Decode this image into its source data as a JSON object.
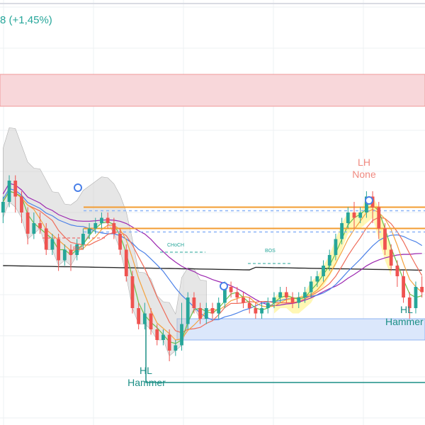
{
  "header": {
    "change_text": "8 (+1,45%)"
  },
  "annotations": {
    "lh_label": "LH",
    "none_label": "None",
    "hl_left_label": "HL",
    "hammer_left_label": "Hammer",
    "hl_right_label": "HL",
    "hammer_right_label": "Hammer",
    "bos_left": "BOS",
    "bos_mid": "BOS",
    "choch_label": "CHoCH"
  },
  "colors": {
    "up": "#26a69a",
    "down": "#ef5350",
    "resistance_zone": "#f8d7da",
    "support_zone": "#dbe7fb",
    "orange_line": "#f39c32",
    "black_ma": "#2b2b2b",
    "purple_ma": "#9c27b0",
    "blue_ma": "#4a80e8",
    "red_ma": "#ef6c5a",
    "orange_ma": "#f4a340",
    "green_ma": "#6cc24a",
    "gray_cloud": "#c8c8c8",
    "yellow_cloud": "#fff176",
    "grid": "#eef0f3"
  },
  "chart_data": {
    "type": "candlestick",
    "candles": [
      {
        "o": 60,
        "c": 62,
        "h": 63,
        "l": 58
      },
      {
        "o": 62,
        "c": 66,
        "h": 67,
        "l": 61
      },
      {
        "o": 66,
        "c": 63,
        "h": 67,
        "l": 60
      },
      {
        "o": 63,
        "c": 60,
        "h": 64,
        "l": 58
      },
      {
        "o": 60,
        "c": 56,
        "h": 61,
        "l": 54
      },
      {
        "o": 56,
        "c": 58,
        "h": 60,
        "l": 55
      },
      {
        "o": 58,
        "c": 57,
        "h": 60,
        "l": 56
      },
      {
        "o": 57,
        "c": 53,
        "h": 58,
        "l": 52
      },
      {
        "o": 53,
        "c": 55,
        "h": 56,
        "l": 52
      },
      {
        "o": 55,
        "c": 51,
        "h": 56,
        "l": 49
      },
      {
        "o": 51,
        "c": 53,
        "h": 54,
        "l": 50
      },
      {
        "o": 53,
        "c": 52,
        "h": 54,
        "l": 49
      },
      {
        "o": 52,
        "c": 54,
        "h": 55,
        "l": 51
      },
      {
        "o": 54,
        "c": 56,
        "h": 57,
        "l": 53
      },
      {
        "o": 56,
        "c": 57,
        "h": 58,
        "l": 55
      },
      {
        "o": 57,
        "c": 58,
        "h": 59,
        "l": 56
      },
      {
        "o": 58,
        "c": 59,
        "h": 60,
        "l": 57
      },
      {
        "o": 59,
        "c": 58,
        "h": 60,
        "l": 57
      },
      {
        "o": 58,
        "c": 56,
        "h": 59,
        "l": 55
      },
      {
        "o": 56,
        "c": 53,
        "h": 57,
        "l": 52
      },
      {
        "o": 53,
        "c": 48,
        "h": 54,
        "l": 47
      },
      {
        "o": 48,
        "c": 42,
        "h": 49,
        "l": 41
      },
      {
        "o": 42,
        "c": 39,
        "h": 43,
        "l": 38
      },
      {
        "o": 39,
        "c": 41,
        "h": 43,
        "l": 38
      },
      {
        "o": 41,
        "c": 38,
        "h": 42,
        "l": 37
      },
      {
        "o": 38,
        "c": 36,
        "h": 39,
        "l": 35
      },
      {
        "o": 36,
        "c": 37,
        "h": 38,
        "l": 35
      },
      {
        "o": 37,
        "c": 34,
        "h": 38,
        "l": 32
      },
      {
        "o": 34,
        "c": 35,
        "h": 36,
        "l": 33
      },
      {
        "o": 35,
        "c": 39,
        "h": 43,
        "l": 34
      },
      {
        "o": 39,
        "c": 44,
        "h": 45,
        "l": 38
      },
      {
        "o": 44,
        "c": 42,
        "h": 45,
        "l": 41
      },
      {
        "o": 42,
        "c": 40,
        "h": 43,
        "l": 39
      },
      {
        "o": 40,
        "c": 42,
        "h": 43,
        "l": 39
      },
      {
        "o": 42,
        "c": 41,
        "h": 43,
        "l": 40
      },
      {
        "o": 41,
        "c": 43,
        "h": 44,
        "l": 40
      },
      {
        "o": 43,
        "c": 46,
        "h": 47,
        "l": 42
      },
      {
        "o": 46,
        "c": 45,
        "h": 47,
        "l": 44
      },
      {
        "o": 45,
        "c": 44,
        "h": 46,
        "l": 43
      },
      {
        "o": 44,
        "c": 43,
        "h": 45,
        "l": 42
      },
      {
        "o": 43,
        "c": 42,
        "h": 44,
        "l": 41
      },
      {
        "o": 42,
        "c": 41,
        "h": 43,
        "l": 40
      },
      {
        "o": 41,
        "c": 42,
        "h": 43,
        "l": 40
      },
      {
        "o": 42,
        "c": 43,
        "h": 44,
        "l": 41
      },
      {
        "o": 43,
        "c": 44,
        "h": 45,
        "l": 42
      },
      {
        "o": 44,
        "c": 45,
        "h": 46,
        "l": 43
      },
      {
        "o": 45,
        "c": 44,
        "h": 46,
        "l": 43
      },
      {
        "o": 44,
        "c": 43,
        "h": 45,
        "l": 42
      },
      {
        "o": 43,
        "c": 44,
        "h": 45,
        "l": 42
      },
      {
        "o": 44,
        "c": 45,
        "h": 46,
        "l": 43
      },
      {
        "o": 45,
        "c": 47,
        "h": 48,
        "l": 44
      },
      {
        "o": 47,
        "c": 48,
        "h": 49,
        "l": 46
      },
      {
        "o": 48,
        "c": 50,
        "h": 51,
        "l": 47
      },
      {
        "o": 50,
        "c": 52,
        "h": 53,
        "l": 49
      },
      {
        "o": 52,
        "c": 55,
        "h": 56,
        "l": 51
      },
      {
        "o": 55,
        "c": 58,
        "h": 59,
        "l": 54
      },
      {
        "o": 58,
        "c": 60,
        "h": 61,
        "l": 57
      },
      {
        "o": 60,
        "c": 59,
        "h": 62,
        "l": 57
      },
      {
        "o": 59,
        "c": 60,
        "h": 61,
        "l": 58
      },
      {
        "o": 60,
        "c": 63,
        "h": 64,
        "l": 59
      },
      {
        "o": 63,
        "c": 61,
        "h": 64,
        "l": 58
      },
      {
        "o": 61,
        "c": 57,
        "h": 62,
        "l": 55
      },
      {
        "o": 57,
        "c": 53,
        "h": 58,
        "l": 52
      },
      {
        "o": 53,
        "c": 50,
        "h": 54,
        "l": 49
      },
      {
        "o": 50,
        "c": 48,
        "h": 51,
        "l": 46
      },
      {
        "o": 48,
        "c": 44,
        "h": 49,
        "l": 43
      },
      {
        "o": 44,
        "c": 42,
        "h": 45,
        "l": 40
      },
      {
        "o": 42,
        "c": 46,
        "h": 47,
        "l": 41
      },
      {
        "o": 46,
        "c": 45,
        "h": 48,
        "l": 44
      }
    ],
    "resistance_zone": {
      "top": 86,
      "bottom": 80
    },
    "orange_levels": [
      61,
      57
    ],
    "support_zone": {
      "top": 40,
      "bottom": 36
    },
    "green_level": 28,
    "y_range": [
      20,
      100
    ]
  }
}
